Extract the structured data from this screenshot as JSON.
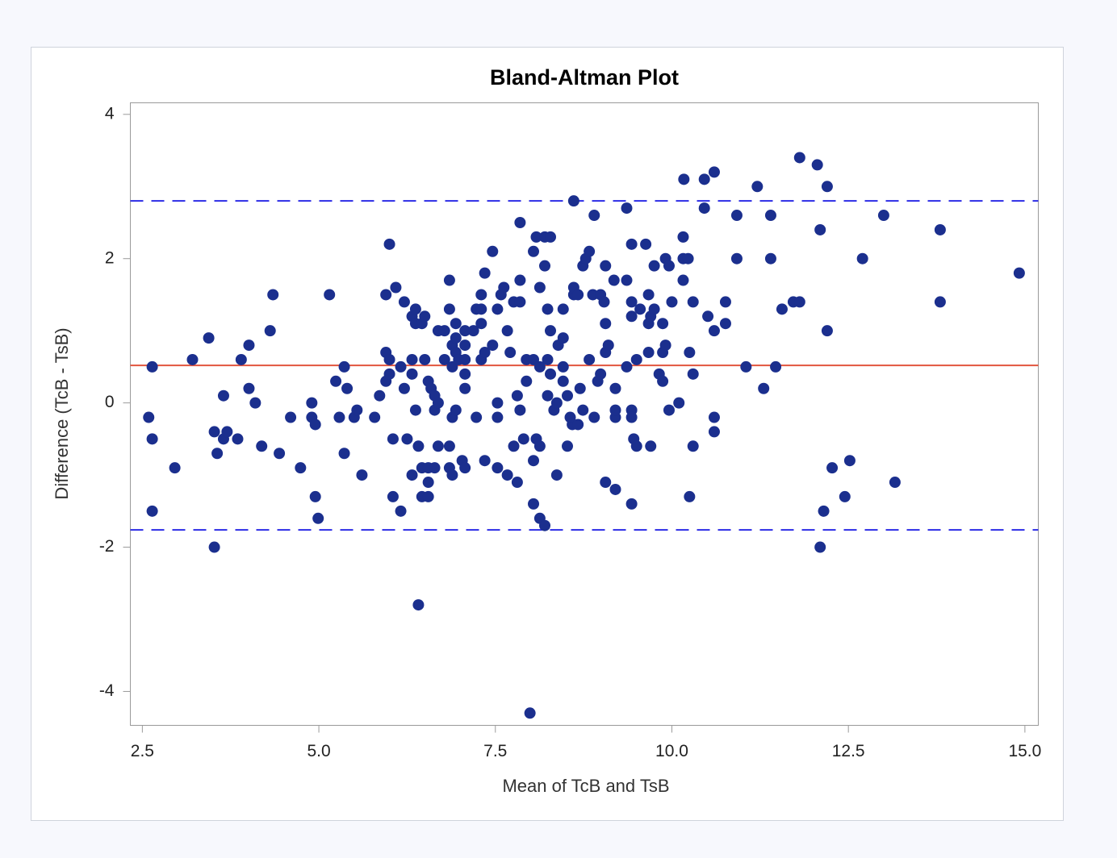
{
  "chart_data": {
    "type": "scatter",
    "title": "Bland-Altman Plot",
    "x_label": "Mean of TcB and TsB",
    "y_label": "Difference (TcB - TsB)",
    "color": "#1b2f8e",
    "xlim": [
      2.33,
      15.19
    ],
    "ylim": [
      -4.47,
      4.16
    ],
    "xticks": [
      {
        "value": 2.5,
        "label": "2.5"
      },
      {
        "value": 5,
        "label": "5.0"
      },
      {
        "value": 7.5,
        "label": "7.5"
      },
      {
        "value": 10,
        "label": "10.0"
      },
      {
        "value": 12.5,
        "label": "12.5"
      },
      {
        "value": 15,
        "label": "15.0"
      }
    ],
    "yticks": [
      -4,
      -2,
      0,
      2,
      4
    ],
    "grid": false,
    "reference_lines": [
      {
        "value": 2.8,
        "color": "#2b2be6",
        "dashed": true
      },
      {
        "value": 0.52,
        "color": "#e2553e",
        "dashed": false
      },
      {
        "value": -1.76,
        "color": "#2b2be6",
        "dashed": true
      }
    ],
    "x": [
      2.59,
      2.64,
      2.64,
      2.64,
      2.96,
      3.21,
      3.44,
      3.52,
      3.56,
      3.52,
      3.65,
      3.65,
      3.7,
      3.85,
      3.9,
      4.01,
      4.01,
      4.1,
      4.19,
      4.31,
      4.35,
      4.44,
      4.6,
      4.74,
      4.9,
      4.9,
      4.95,
      4.95,
      4.99,
      5.15,
      5.24,
      5.29,
      5.36,
      5.4,
      5.36,
      5.5,
      5.54,
      5.61,
      5.79,
      5.86,
      5.95,
      6.0,
      5.95,
      6.0,
      5.95,
      6.0,
      6.05,
      6.05,
      6.09,
      6.16,
      6.16,
      6.21,
      6.21,
      6.25,
      6.32,
      6.32,
      6.32,
      6.37,
      6.37,
      6.37,
      6.32,
      6.41,
      6.41,
      6.46,
      6.46,
      6.46,
      6.5,
      6.5,
      6.55,
      6.55,
      6.55,
      6.55,
      6.59,
      6.64,
      6.64,
      6.64,
      6.69,
      6.69,
      6.69,
      6.78,
      6.78,
      6.85,
      6.85,
      6.85,
      6.85,
      6.89,
      6.89,
      6.89,
      6.89,
      6.94,
      6.94,
      6.94,
      6.94,
      6.98,
      7.03,
      7.07,
      7.07,
      7.07,
      7.07,
      7.07,
      7.07,
      7.19,
      7.23,
      7.3,
      7.23,
      7.3,
      7.3,
      7.3,
      7.35,
      7.35,
      7.35,
      7.46,
      7.53,
      7.46,
      7.53,
      7.53,
      7.53,
      7.62,
      7.58,
      7.67,
      7.67,
      7.71,
      7.76,
      7.76,
      7.85,
      7.81,
      7.85,
      7.85,
      7.81,
      7.85,
      7.9,
      7.94,
      7.94,
      7.99,
      8.04,
      8.04,
      8.04,
      8.08,
      8.04,
      8.08,
      8.13,
      8.13,
      8.13,
      8.2,
      8.13,
      8.2,
      8.2,
      8.24,
      8.24,
      8.24,
      8.28,
      8.28,
      8.28,
      8.33,
      8.37,
      8.39,
      8.37,
      8.46,
      8.46,
      8.46,
      8.46,
      8.52,
      8.52,
      8.61,
      8.61,
      8.61,
      8.59,
      8.56,
      8.67,
      8.67,
      8.7,
      8.74,
      8.74,
      8.78,
      8.83,
      8.83,
      8.9,
      8.88,
      8.9,
      8.95,
      8.99,
      8.99,
      9.04,
      9.06,
      9.06,
      9.06,
      9.1,
      9.06,
      9.18,
      9.2,
      9.2,
      9.2,
      9.2,
      9.36,
      9.36,
      9.36,
      9.43,
      9.43,
      9.43,
      9.43,
      9.43,
      9.43,
      9.46,
      9.5,
      9.5,
      9.55,
      9.63,
      9.67,
      9.67,
      9.67,
      9.7,
      9.7,
      9.75,
      9.75,
      9.82,
      9.87,
      9.87,
      9.87,
      9.91,
      9.91,
      9.96,
      9.96,
      10.0,
      10.1,
      10.16,
      10.16,
      10.16,
      10.23,
      10.17,
      10.25,
      10.25,
      10.3,
      10.3,
      10.3,
      10.46,
      10.46,
      10.51,
      10.6,
      10.6,
      10.6,
      10.6,
      10.76,
      10.76,
      10.92,
      10.92,
      11.05,
      11.21,
      11.3,
      11.4,
      11.4,
      11.47,
      11.56,
      11.72,
      11.81,
      11.81,
      12.06,
      12.1,
      12.2,
      12.2,
      12.1,
      12.15,
      12.27,
      12.45,
      12.52,
      12.7,
      13.0,
      13.16,
      13.8,
      13.8,
      14.92
    ],
    "values": [
      -0.2,
      0.5,
      -0.5,
      -1.5,
      -0.9,
      0.6,
      0.9,
      -0.4,
      -0.7,
      -2.0,
      0.1,
      -0.5,
      -0.4,
      -0.5,
      0.6,
      0.8,
      0.2,
      0.0,
      -0.6,
      1.0,
      1.5,
      -0.7,
      -0.2,
      -0.9,
      0.0,
      -0.2,
      -0.3,
      -1.3,
      -1.6,
      1.5,
      0.3,
      -0.2,
      0.5,
      0.2,
      -0.7,
      -0.2,
      -0.1,
      -1.0,
      -0.2,
      0.1,
      1.5,
      2.2,
      0.7,
      0.6,
      0.3,
      0.4,
      -0.5,
      -1.3,
      1.6,
      0.5,
      -1.5,
      1.4,
      0.2,
      -0.5,
      1.2,
      0.6,
      0.4,
      1.3,
      1.1,
      -0.1,
      -1.0,
      -0.6,
      -2.8,
      1.1,
      -0.9,
      -1.3,
      1.2,
      0.6,
      0.3,
      -0.9,
      -1.1,
      -1.3,
      0.2,
      0.1,
      -0.1,
      -0.9,
      1.0,
      0.0,
      -0.6,
      1.0,
      0.6,
      1.7,
      1.3,
      -0.6,
      -0.9,
      -1.0,
      0.8,
      0.5,
      -0.2,
      1.1,
      0.9,
      0.7,
      -0.1,
      0.6,
      -0.8,
      1.0,
      0.8,
      -0.9,
      0.6,
      0.4,
      0.2,
      1.0,
      1.3,
      0.6,
      -0.2,
      1.5,
      1.3,
      1.1,
      0.7,
      1.8,
      -0.8,
      2.1,
      1.3,
      0.8,
      0.0,
      -0.2,
      -0.9,
      1.6,
      1.5,
      1.0,
      -1.0,
      0.7,
      1.4,
      -0.6,
      1.4,
      -1.1,
      2.5,
      1.7,
      0.1,
      -0.1,
      -0.5,
      0.6,
      0.3,
      -4.3,
      -0.8,
      -1.4,
      2.1,
      2.3,
      0.6,
      -0.5,
      1.6,
      0.5,
      -1.6,
      -1.7,
      -0.6,
      2.3,
      1.9,
      1.3,
      0.1,
      0.6,
      2.3,
      1.0,
      0.4,
      -0.1,
      0.0,
      0.8,
      -1.0,
      1.3,
      0.5,
      0.3,
      0.9,
      0.1,
      -0.6,
      1.5,
      2.8,
      1.6,
      -0.3,
      -0.2,
      1.5,
      -0.3,
      0.2,
      1.9,
      -0.1,
      2.0,
      2.1,
      0.6,
      2.6,
      1.5,
      -0.2,
      0.3,
      0.4,
      1.5,
      1.4,
      1.9,
      1.1,
      0.7,
      0.8,
      -1.1,
      1.7,
      0.2,
      -0.2,
      -1.2,
      -0.1,
      2.7,
      1.7,
      0.5,
      -0.1,
      -0.2,
      2.2,
      1.4,
      1.2,
      -1.4,
      -0.5,
      -0.6,
      0.6,
      1.3,
      2.2,
      1.5,
      0.7,
      1.1,
      1.2,
      -0.6,
      1.9,
      1.3,
      0.4,
      0.3,
      0.7,
      1.1,
      0.8,
      2.0,
      1.9,
      -0.1,
      1.4,
      0.0,
      2.0,
      2.3,
      1.7,
      2.0,
      3.1,
      0.7,
      -1.3,
      1.4,
      0.4,
      -0.6,
      3.1,
      2.7,
      1.2,
      3.2,
      1.0,
      -0.2,
      -0.4,
      1.4,
      1.1,
      2.6,
      2.0,
      0.5,
      3.0,
      0.2,
      2.6,
      2.0,
      0.5,
      1.3,
      1.4,
      1.4,
      3.4,
      3.3,
      2.4,
      3.0,
      1.0,
      -2.0,
      -1.5,
      -0.9,
      -1.3,
      -0.8,
      2.0,
      2.6,
      -1.1,
      2.4,
      1.4,
      1.8
    ]
  }
}
